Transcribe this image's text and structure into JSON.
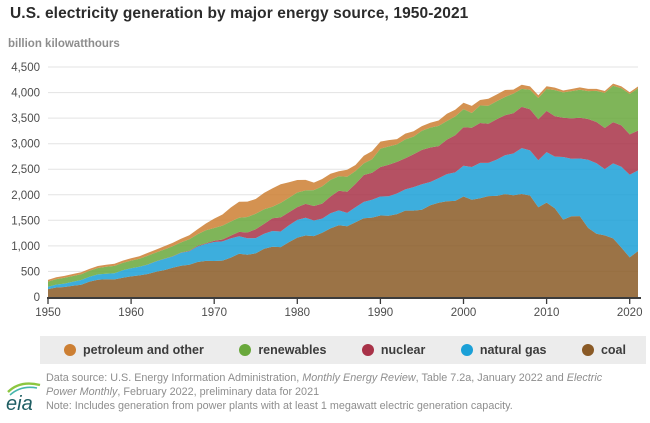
{
  "header": {
    "title": "U.S. electricity generation by major energy source, 1950-2021",
    "unit_label": "billion kilowatthours"
  },
  "legend": {
    "items": [
      {
        "id": "petroleum-and-other",
        "label": "petroleum and other",
        "color": "#cc7f33"
      },
      {
        "id": "renewables",
        "label": "renewables",
        "color": "#69a83c"
      },
      {
        "id": "nuclear",
        "label": "nuclear",
        "color": "#a83248"
      },
      {
        "id": "natural-gas",
        "label": "natural gas",
        "color": "#1ba0d7"
      },
      {
        "id": "coal",
        "label": "coal",
        "color": "#8a5a26"
      }
    ]
  },
  "footer": {
    "logo_text": "eia",
    "lines": [
      [
        {
          "text": "Data source: U.S. Energy Information Administration, ",
          "italic": false
        },
        {
          "text": "Monthly Energy Review",
          "italic": true
        },
        {
          "text": ", Table 7.2a, January 2022 and ",
          "italic": false
        },
        {
          "text": "Electric",
          "italic": true
        }
      ],
      [
        {
          "text": "Power Monthly",
          "italic": true
        },
        {
          "text": ", February 2022, preliminary data for 2021",
          "italic": false
        }
      ],
      [
        {
          "text": "Note: Includes generation from power plants with at least 1 megawatt electric generation capacity.",
          "italic": false
        }
      ]
    ]
  },
  "chart_data": {
    "type": "area",
    "stacked": true,
    "title": "U.S. electricity generation by major energy source, 1950-2021",
    "xlabel": "",
    "ylabel": "billion kilowatthours",
    "grid": "horizontal",
    "legend_position": "bottom",
    "xlim": [
      1950,
      2021
    ],
    "ylim": [
      0,
      4500
    ],
    "xticks": [
      1950,
      1960,
      1970,
      1980,
      1990,
      2000,
      2010,
      2020
    ],
    "yticks": [
      0,
      500,
      1000,
      1500,
      2000,
      2500,
      3000,
      3500,
      4000,
      4500
    ],
    "x": [
      1950,
      1951,
      1952,
      1953,
      1954,
      1955,
      1956,
      1957,
      1958,
      1959,
      1960,
      1961,
      1962,
      1963,
      1964,
      1965,
      1966,
      1967,
      1968,
      1969,
      1970,
      1971,
      1972,
      1973,
      1974,
      1975,
      1976,
      1977,
      1978,
      1979,
      1980,
      1981,
      1982,
      1983,
      1984,
      1985,
      1986,
      1987,
      1988,
      1989,
      1990,
      1991,
      1992,
      1993,
      1994,
      1995,
      1996,
      1997,
      1998,
      1999,
      2000,
      2001,
      2002,
      2003,
      2004,
      2005,
      2006,
      2007,
      2008,
      2009,
      2010,
      2011,
      2012,
      2013,
      2014,
      2015,
      2016,
      2017,
      2018,
      2019,
      2020,
      2021
    ],
    "series": [
      {
        "id": "coal",
        "name": "coal",
        "color": "#8a5a26",
        "values": [
          155,
          185,
          195,
          219,
          239,
          301,
          339,
          346,
          344,
          378,
          403,
          422,
          450,
          494,
          526,
          571,
          613,
          630,
          685,
          706,
          704,
          713,
          771,
          848,
          828,
          853,
          944,
          985,
          976,
          1075,
          1162,
          1203,
          1192,
          1259,
          1342,
          1402,
          1386,
          1464,
          1541,
          1554,
          1594,
          1591,
          1621,
          1690,
          1691,
          1709,
          1795,
          1845,
          1874,
          1881,
          1966,
          1904,
          1933,
          1974,
          1978,
          2013,
          1991,
          2016,
          1986,
          1756,
          1847,
          1733,
          1514,
          1581,
          1582,
          1352,
          1239,
          1206,
          1146,
          966,
          774,
          898
        ]
      },
      {
        "id": "natural-gas",
        "name": "natural gas",
        "color": "#1ba0d7",
        "values": [
          45,
          57,
          68,
          80,
          94,
          95,
          104,
          110,
          120,
          147,
          158,
          169,
          184,
          202,
          220,
          222,
          251,
          265,
          304,
          333,
          373,
          374,
          376,
          341,
          320,
          300,
          295,
          306,
          305,
          329,
          346,
          346,
          305,
          274,
          297,
          292,
          260,
          293,
          319,
          349,
          373,
          382,
          404,
          415,
          460,
          496,
          455,
          479,
          531,
          556,
          601,
          639,
          691,
          650,
          710,
          761,
          816,
          897,
          883,
          921,
          988,
          1013,
          1225,
          1124,
          1127,
          1333,
          1378,
          1296,
          1468,
          1582,
          1617,
          1579
        ]
      },
      {
        "id": "nuclear",
        "name": "nuclear",
        "color": "#a83248",
        "values": [
          0,
          0,
          0,
          0,
          0,
          0,
          0,
          0,
          0,
          0,
          1,
          2,
          2,
          3,
          3,
          4,
          6,
          8,
          13,
          14,
          22,
          38,
          54,
          84,
          114,
          173,
          191,
          251,
          276,
          255,
          251,
          273,
          283,
          294,
          328,
          384,
          414,
          455,
          527,
          529,
          577,
          613,
          619,
          610,
          640,
          673,
          675,
          629,
          674,
          728,
          754,
          769,
          780,
          764,
          789,
          782,
          787,
          806,
          806,
          799,
          807,
          790,
          769,
          789,
          797,
          797,
          806,
          805,
          807,
          809,
          790,
          778
        ]
      },
      {
        "id": "renewables",
        "name": "renewables",
        "color": "#69a83c",
        "values": [
          101,
          109,
          112,
          111,
          113,
          117,
          125,
          134,
          144,
          142,
          150,
          155,
          172,
          172,
          181,
          197,
          199,
          225,
          226,
          254,
          251,
          272,
          277,
          276,
          304,
          303,
          286,
          224,
          284,
          283,
          285,
          264,
          312,
          337,
          324,
          284,
          294,
          253,
          226,
          265,
          357,
          358,
          342,
          369,
          348,
          375,
          389,
          395,
          364,
          366,
          356,
          288,
          343,
          355,
          351,
          357,
          385,
          352,
          381,
          417,
          427,
          513,
          495,
          534,
          549,
          546,
          609,
          687,
          713,
          728,
          792,
          826
        ]
      },
      {
        "id": "petroleum-and-other",
        "name": "petroleum and other",
        "color": "#cc7f33",
        "values": [
          34,
          36,
          37,
          40,
          38,
          37,
          39,
          42,
          43,
          46,
          48,
          51,
          54,
          57,
          61,
          65,
          71,
          82,
          97,
          132,
          184,
          218,
          274,
          314,
          301,
          289,
          320,
          358,
          365,
          304,
          246,
          206,
          147,
          144,
          120,
          100,
          137,
          118,
          149,
          158,
          140,
          125,
          103,
          113,
          105,
          90,
          96,
          105,
          144,
          131,
          124,
          138,
          108,
          134,
          133,
          137,
          79,
          80,
          64,
          56,
          55,
          47,
          37,
          42,
          45,
          44,
          40,
          37,
          41,
          36,
          34,
          37
        ]
      }
    ]
  }
}
